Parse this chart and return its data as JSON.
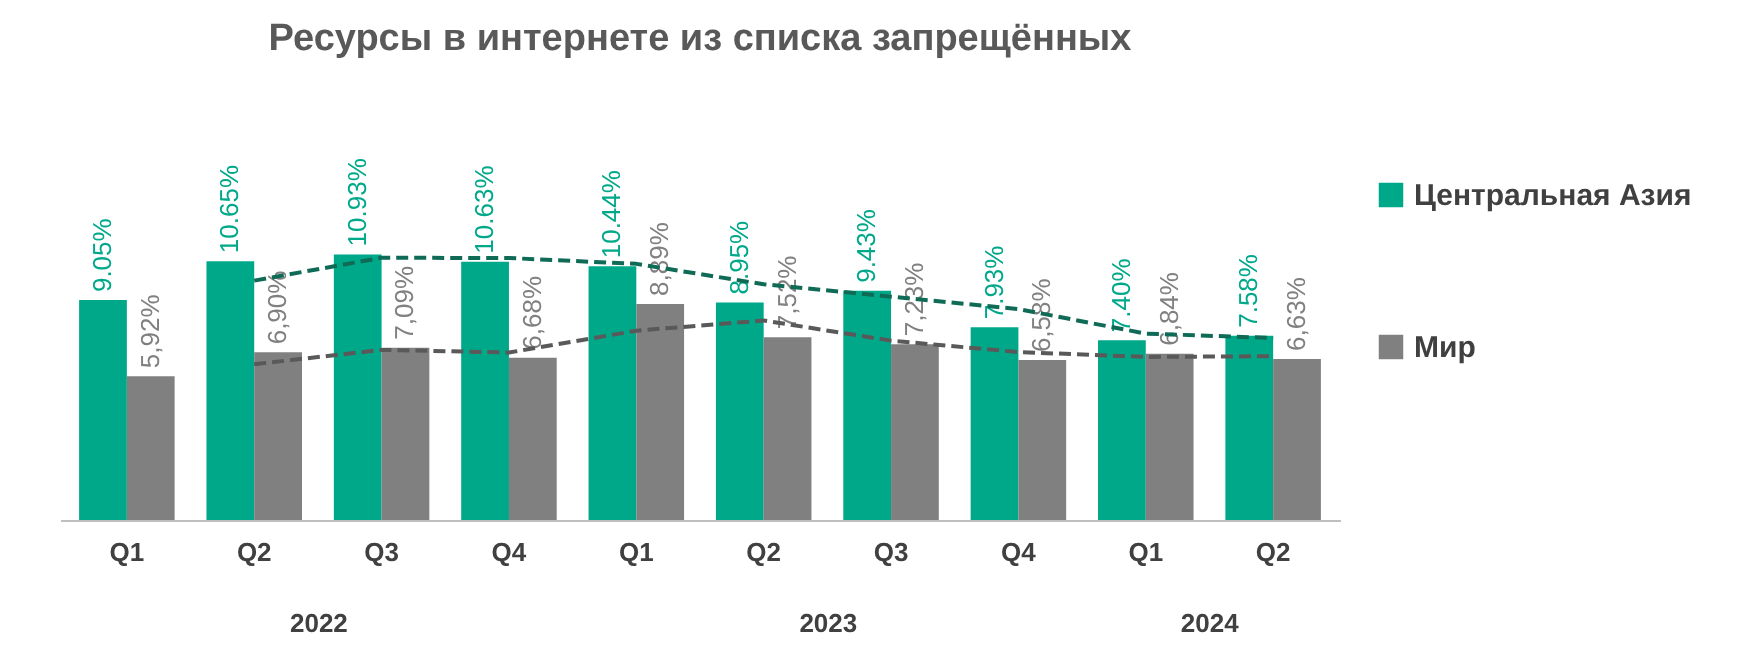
{
  "chart_data": {
    "type": "bar",
    "title": "Ресурсы в интернете из списка запрещённых",
    "categories": [
      "Q1",
      "Q2",
      "Q3",
      "Q4",
      "Q1",
      "Q2",
      "Q3",
      "Q4",
      "Q1",
      "Q2"
    ],
    "annotations": [
      "2022",
      "2023",
      "2024"
    ],
    "legend": "right",
    "series": [
      {
        "name": "Центральная Азия",
        "color": "#00a88a",
        "values": [
          9.05,
          10.65,
          10.93,
          10.63,
          10.44,
          8.95,
          9.43,
          7.93,
          7.4,
          7.58
        ],
        "value_labels": [
          "9.05%",
          "10.65%",
          "10.93%",
          "10.63%",
          "10.44%",
          "8.95%",
          "9.43%",
          "7.93%",
          "7.40%",
          "7.58%"
        ]
      },
      {
        "name": "Мир",
        "color": "#808080",
        "values": [
          5.92,
          6.9,
          7.09,
          6.68,
          8.89,
          7.52,
          7.23,
          6.58,
          6.84,
          6.63
        ],
        "value_labels": [
          "5,92%",
          "6,90%",
          "7,09%",
          "6,68%",
          "8,89%",
          "7,52%",
          "7,23%",
          "6,58%",
          "6,84%",
          "6,63%"
        ]
      },
      {
        "type": "line",
        "color": "#0f6b55",
        "line_style": "dashed",
        "marker": "none",
        "values": [
          null,
          9.85,
          10.79,
          10.78,
          10.54,
          9.7,
          9.19,
          8.68,
          7.67,
          7.49
        ]
      },
      {
        "type": "line",
        "color": "#595959",
        "line_style": "dashed",
        "marker": "none",
        "values": [
          null,
          6.41,
          7.0,
          6.89,
          7.79,
          8.21,
          7.38,
          6.91,
          6.71,
          6.74
        ]
      }
    ]
  }
}
